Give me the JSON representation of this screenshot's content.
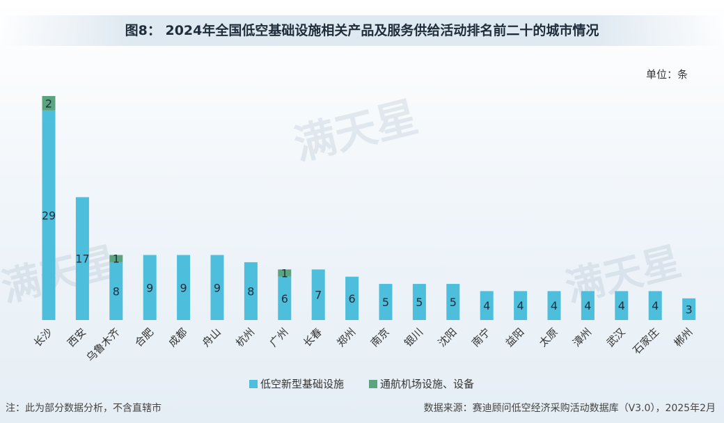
{
  "header": {
    "title": "图8： 2024年全国低空基础设施相关产品及服务供给活动排名前二十的城市情况",
    "unit": "单位：条"
  },
  "footer": {
    "note": "注：此为部分数据分析，不含直辖市",
    "source": "数据来源：赛迪顾问低空经济采购活动数据库（V3.0），2025年2月"
  },
  "watermark": {
    "brand": "满天星"
  },
  "colors": {
    "series1": "#4dbfdc",
    "series2": "#5aa47f"
  },
  "chart_data": {
    "type": "bar",
    "stacked": true,
    "title": "图8： 2024年全国低空基础设施相关产品及服务供给活动排名前二十的城市情况",
    "categories": [
      "长沙",
      "西安",
      "乌鲁木齐",
      "合肥",
      "成都",
      "舟山",
      "杭州",
      "广州",
      "长春",
      "郑州",
      "南京",
      "银川",
      "沈阳",
      "南宁",
      "益阳",
      "太原",
      "漳州",
      "武汉",
      "石家庄",
      "郴州"
    ],
    "series": [
      {
        "name": "低空新型基础设施",
        "values": [
          29,
          17,
          8,
          9,
          9,
          9,
          8,
          6,
          7,
          6,
          5,
          5,
          5,
          4,
          4,
          4,
          4,
          4,
          4,
          3
        ]
      },
      {
        "name": "通航机场设施、设备",
        "values": [
          2,
          0,
          1,
          0,
          0,
          0,
          0,
          1,
          0,
          0,
          0,
          0,
          0,
          0,
          0,
          0,
          0,
          0,
          0,
          0
        ]
      }
    ],
    "ylim": [
      0,
      31
    ],
    "grid": false,
    "legend": "bottom"
  }
}
